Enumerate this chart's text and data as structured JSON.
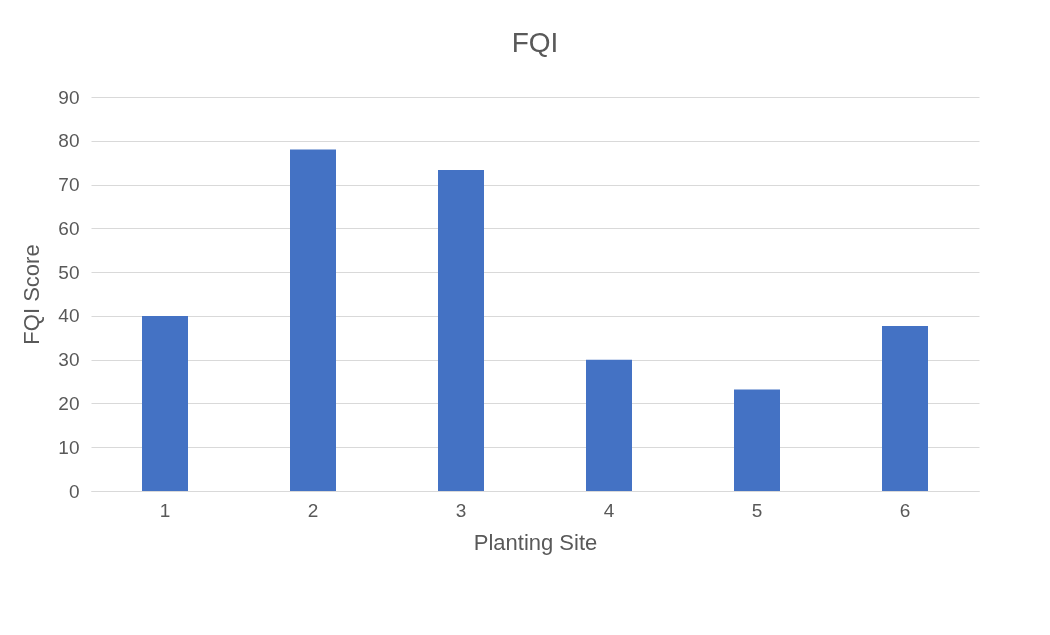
{
  "chart_data": {
    "type": "bar",
    "title": "FQI",
    "xlabel": "Planting Site",
    "ylabel": "FQI Score",
    "categories": [
      "1",
      "2",
      "3",
      "4",
      "5",
      "6"
    ],
    "values": [
      40,
      78,
      73.3,
      30,
      23.2,
      37.7
    ],
    "color": "#4472c4",
    "ylim": [
      0,
      90
    ],
    "yticks": [
      0,
      10,
      20,
      30,
      40,
      50,
      60,
      70,
      80,
      90
    ],
    "grid": "y"
  }
}
